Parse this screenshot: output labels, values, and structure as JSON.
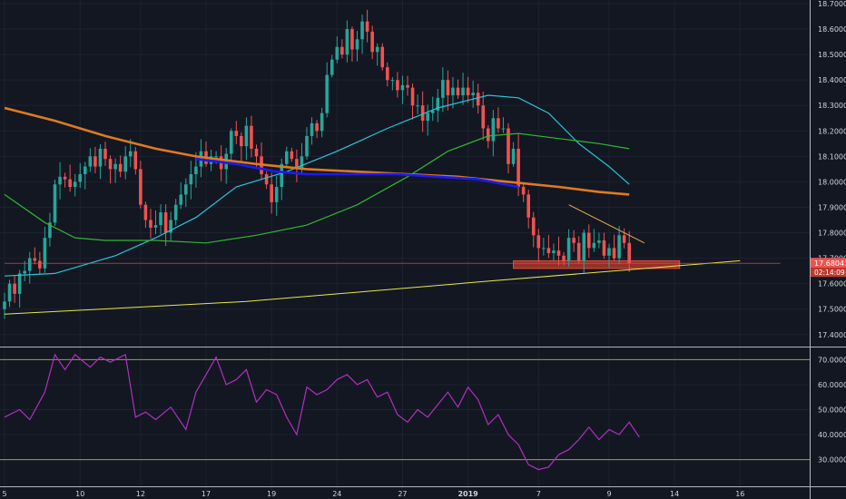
{
  "chart_data": [
    {
      "type": "candlestick",
      "title": "",
      "ylim": [
        17.36,
        18.7
      ],
      "y_ticks": [
        "18.70000",
        "18.60000",
        "18.50000",
        "18.40000",
        "18.30000",
        "18.20000",
        "18.10000",
        "18.00000",
        "17.90000",
        "17.80000",
        "17.70000",
        "17.60000",
        "17.50000",
        "17.40000"
      ],
      "y_tick_values": [
        18.7,
        18.6,
        18.5,
        18.4,
        18.3,
        18.2,
        18.1,
        18.0,
        17.9,
        17.8,
        17.7,
        17.6,
        17.5,
        17.4
      ],
      "x_ticks": [
        "5",
        "10",
        "12",
        "17",
        "19",
        "24",
        "27",
        "2019",
        "7",
        "9",
        "14",
        "16"
      ],
      "x_tick_index": [
        0,
        15,
        27,
        40,
        53,
        66,
        79,
        92,
        106,
        120,
        133,
        146
      ],
      "bar_count": 147,
      "last_bar_index": 124,
      "price_label": "17.68041",
      "countdown_label": "02:14:09",
      "current_price": 17.68,
      "candles_close": [
        17.53,
        17.6,
        17.56,
        17.64,
        17.65,
        17.7,
        17.69,
        17.66,
        17.78,
        17.84,
        17.99,
        18.02,
        18.01,
        17.98,
        18.0,
        18.03,
        18.06,
        18.1,
        18.06,
        18.13,
        18.09,
        18.05,
        18.07,
        18.04,
        18.1,
        18.12,
        18.05,
        17.91,
        17.85,
        17.82,
        17.83,
        17.88,
        17.8,
        17.85,
        17.91,
        17.95,
        17.99,
        18.03,
        18.06,
        18.12,
        18.07,
        18.1,
        18.1,
        18.05,
        18.11,
        18.2,
        18.18,
        18.14,
        18.22,
        18.13,
        18.1,
        18.03,
        17.99,
        17.92,
        17.98,
        18.07,
        18.12,
        18.09,
        18.05,
        18.1,
        18.18,
        18.23,
        18.2,
        18.27,
        18.42,
        18.48,
        18.53,
        18.5,
        18.6,
        18.52,
        18.56,
        18.63,
        18.59,
        18.51,
        18.53,
        18.45,
        18.4,
        18.4,
        18.36,
        18.38,
        18.37,
        18.3,
        18.3,
        18.24,
        18.27,
        18.28,
        18.33,
        18.4,
        18.34,
        18.37,
        18.34,
        18.37,
        18.34,
        18.35,
        18.3,
        18.21,
        18.16,
        18.25,
        18.21,
        18.21,
        18.07,
        18.13,
        17.98,
        17.95,
        17.86,
        17.79,
        17.74,
        17.74,
        17.72,
        17.73,
        17.71,
        17.69,
        17.78,
        17.76,
        17.69,
        17.8,
        17.74,
        17.76,
        17.77,
        17.71,
        17.74,
        17.7,
        17.79,
        17.76,
        17.68
      ],
      "series": [
        {
          "name": "",
          "type": "line",
          "color": "#26c6da",
          "values": [
            [
              0,
              17.63
            ],
            [
              10,
              17.64
            ],
            [
              22,
              17.71
            ],
            [
              30,
              17.78
            ],
            [
              38,
              17.86
            ],
            [
              46,
              17.98
            ],
            [
              56,
              18.04
            ],
            [
              66,
              18.12
            ],
            [
              76,
              18.21
            ],
            [
              86,
              18.29
            ],
            [
              92,
              18.32
            ],
            [
              96,
              18.34
            ],
            [
              102,
              18.33
            ],
            [
              108,
              18.27
            ],
            [
              114,
              18.15
            ],
            [
              120,
              18.06
            ],
            [
              124,
              17.99
            ]
          ]
        },
        {
          "name": "",
          "type": "line",
          "color": "#2eb82e",
          "values": [
            [
              0,
              17.95
            ],
            [
              8,
              17.84
            ],
            [
              14,
              17.78
            ],
            [
              20,
              17.77
            ],
            [
              30,
              17.77
            ],
            [
              40,
              17.76
            ],
            [
              50,
              17.79
            ],
            [
              60,
              17.83
            ],
            [
              70,
              17.91
            ],
            [
              80,
              18.02
            ],
            [
              88,
              18.12
            ],
            [
              96,
              18.18
            ],
            [
              102,
              18.19
            ],
            [
              110,
              18.17
            ],
            [
              118,
              18.15
            ],
            [
              124,
              18.13
            ]
          ]
        },
        {
          "name": "",
          "type": "line",
          "color": "#e07a1f",
          "values": [
            [
              0,
              18.29
            ],
            [
              10,
              18.24
            ],
            [
              20,
              18.18
            ],
            [
              30,
              18.13
            ],
            [
              38,
              18.1
            ],
            [
              50,
              18.07
            ],
            [
              60,
              18.05
            ],
            [
              70,
              18.04
            ],
            [
              80,
              18.03
            ],
            [
              90,
              18.02
            ],
            [
              100,
              18.0
            ],
            [
              110,
              17.98
            ],
            [
              118,
              17.96
            ],
            [
              124,
              17.95
            ]
          ]
        },
        {
          "name": "",
          "type": "line",
          "color": "#1a1aff",
          "values": [
            [
              38,
              18.09
            ],
            [
              46,
              18.07
            ],
            [
              54,
              18.04
            ],
            [
              60,
              18.03
            ],
            [
              68,
              18.03
            ],
            [
              78,
              18.03
            ],
            [
              86,
              18.02
            ],
            [
              94,
              18.01
            ],
            [
              102,
              17.98
            ]
          ]
        },
        {
          "name": "",
          "type": "line",
          "color": "#e8e84a",
          "values": [
            [
              0,
              17.48
            ],
            [
              48,
              17.53
            ],
            [
              96,
              17.61
            ],
            [
              146,
              17.69
            ]
          ]
        },
        {
          "name": "",
          "type": "line",
          "color": "#f0a84a",
          "values": [
            [
              112,
              17.91
            ],
            [
              127,
              17.76
            ]
          ]
        },
        {
          "name": "",
          "type": "line",
          "color": "#e05050",
          "values": [
            [
              0,
              17.68
            ],
            [
              154,
              17.68
            ]
          ]
        }
      ],
      "zone": {
        "x": [
          101,
          134
        ],
        "y": [
          17.66,
          17.69
        ],
        "color": "#c0392b"
      }
    },
    {
      "type": "line",
      "title": "",
      "ylim": [
        21.5,
        74.5
      ],
      "y_ticks": [
        "70.0000",
        "60.0000",
        "50.0000",
        "40.0000",
        "30.0000"
      ],
      "y_tick_values": [
        70,
        60,
        50,
        40,
        30
      ],
      "levels": [
        70,
        30
      ],
      "level_color": "#9e9e3a",
      "series": [
        {
          "name": "",
          "color": "#b030c0",
          "values": [
            [
              0,
              47
            ],
            [
              3,
              50
            ],
            [
              5,
              46
            ],
            [
              8,
              57
            ],
            [
              10,
              72
            ],
            [
              12,
              66
            ],
            [
              14,
              72
            ],
            [
              17,
              67
            ],
            [
              19,
              71
            ],
            [
              21,
              69
            ],
            [
              24,
              72
            ],
            [
              26,
              47
            ],
            [
              28,
              49
            ],
            [
              30,
              46
            ],
            [
              33,
              51
            ],
            [
              36,
              42
            ],
            [
              38,
              57
            ],
            [
              40,
              64
            ],
            [
              42,
              71
            ],
            [
              44,
              60
            ],
            [
              46,
              62
            ],
            [
              48,
              66
            ],
            [
              50,
              53
            ],
            [
              52,
              58
            ],
            [
              54,
              56
            ],
            [
              56,
              47
            ],
            [
              58,
              40
            ],
            [
              60,
              59
            ],
            [
              62,
              56
            ],
            [
              64,
              58
            ],
            [
              66,
              62
            ],
            [
              68,
              64
            ],
            [
              70,
              60
            ],
            [
              72,
              62
            ],
            [
              74,
              55
            ],
            [
              76,
              57
            ],
            [
              78,
              48
            ],
            [
              80,
              45
            ],
            [
              82,
              50
            ],
            [
              84,
              47
            ],
            [
              86,
              52
            ],
            [
              88,
              57
            ],
            [
              90,
              51
            ],
            [
              92,
              59
            ],
            [
              94,
              54
            ],
            [
              96,
              44
            ],
            [
              98,
              48
            ],
            [
              100,
              40
            ],
            [
              102,
              36
            ],
            [
              104,
              28
            ],
            [
              106,
              26
            ],
            [
              108,
              27
            ],
            [
              110,
              32
            ],
            [
              112,
              34
            ],
            [
              114,
              38
            ],
            [
              116,
              43
            ],
            [
              118,
              38
            ],
            [
              120,
              42
            ],
            [
              122,
              40
            ],
            [
              124,
              45
            ],
            [
              126,
              39
            ]
          ]
        }
      ]
    }
  ]
}
